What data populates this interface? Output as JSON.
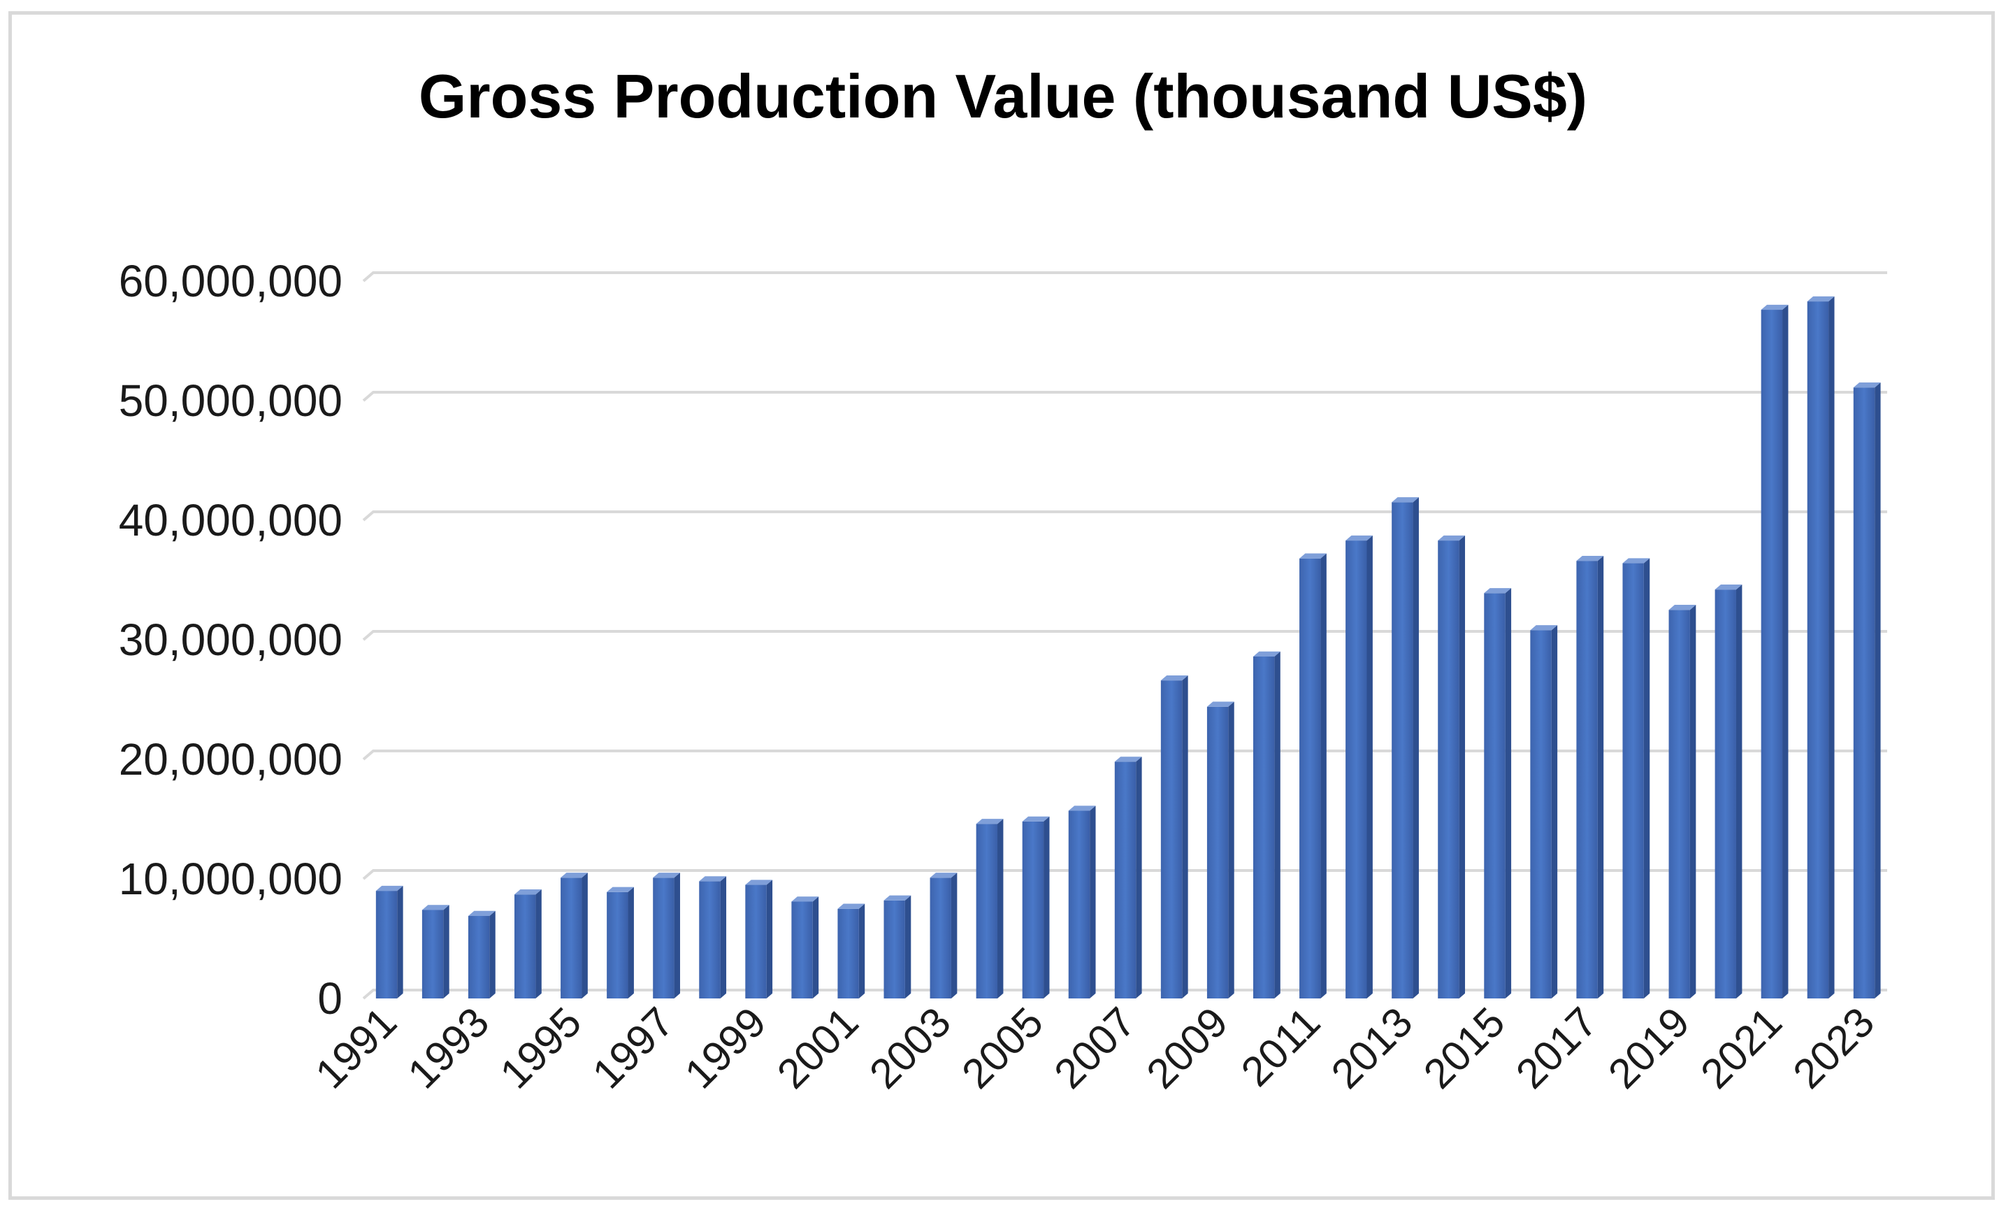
{
  "chart_data": {
    "type": "bar",
    "title": "Gross Production Value (thousand US$)",
    "xlabel": "",
    "ylabel": "",
    "ylim": [
      0,
      60000000
    ],
    "y_ticks": [
      "0",
      "10,000,000",
      "20,000,000",
      "30,000,000",
      "40,000,000",
      "50,000,000",
      "60,000,000"
    ],
    "x_tick_labels_shown": [
      "1991",
      "1993",
      "1995",
      "1997",
      "1999",
      "2001",
      "2003",
      "2005",
      "2007",
      "2009",
      "2011",
      "2013",
      "2015",
      "2017",
      "2019",
      "2021",
      "2023"
    ],
    "categories": [
      "1991",
      "1992",
      "1993",
      "1994",
      "1995",
      "1996",
      "1997",
      "1998",
      "1999",
      "2000",
      "2001",
      "2002",
      "2003",
      "2004",
      "2005",
      "2006",
      "2007",
      "2008",
      "2009",
      "2010",
      "2011",
      "2012",
      "2013",
      "2014",
      "2015",
      "2016",
      "2017",
      "2018",
      "2019",
      "2020",
      "2021",
      "2022",
      "2023"
    ],
    "values": [
      9000000,
      7400000,
      6900000,
      8700000,
      10100000,
      8900000,
      10100000,
      9800000,
      9500000,
      8100000,
      7500000,
      8200000,
      10100000,
      14600000,
      14800000,
      15700000,
      19800000,
      26600000,
      24400000,
      28600000,
      36800000,
      38300000,
      41500000,
      38300000,
      33900000,
      30800000,
      36600000,
      36400000,
      32500000,
      34200000,
      57600000,
      58300000,
      51100000
    ],
    "grid": true,
    "legend": "none",
    "bar_color": "#4472c4"
  }
}
